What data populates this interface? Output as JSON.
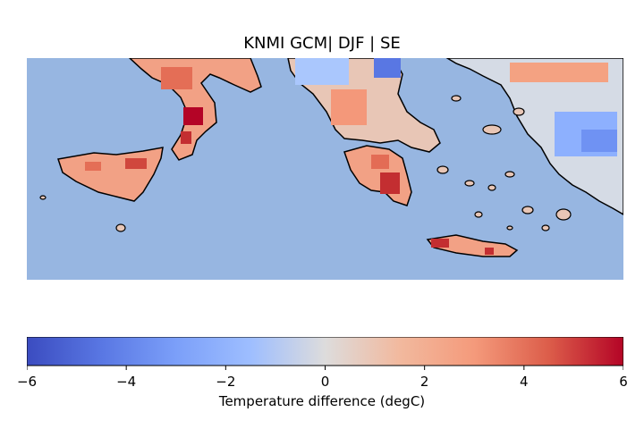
{
  "title": "KNMI GCM| DJF | SE",
  "colorbar": {
    "label": "Temperature difference (degC)",
    "min": -6,
    "max": 6,
    "ticks": [
      "−6",
      "−4",
      "−2",
      "0",
      "2",
      "4",
      "6"
    ],
    "tick_values": [
      -6,
      -4,
      -2,
      0,
      2,
      4,
      6
    ],
    "colormap": "coolwarm",
    "colors": {
      "cold": "#3b4cc0",
      "neutral": "#dddcdc",
      "warm": "#b40426"
    }
  },
  "map": {
    "sea_color": "#97b6e1",
    "coastline_color": "#000000",
    "regions": [
      {
        "name": "southern-italy",
        "anomaly": 3
      },
      {
        "name": "sicily",
        "anomaly": 3
      },
      {
        "name": "greece-north",
        "anomaly": -1
      },
      {
        "name": "peloponnese",
        "anomaly": 4
      },
      {
        "name": "crete",
        "anomaly": 4
      },
      {
        "name": "western-turkey",
        "anomaly": -2
      }
    ]
  }
}
